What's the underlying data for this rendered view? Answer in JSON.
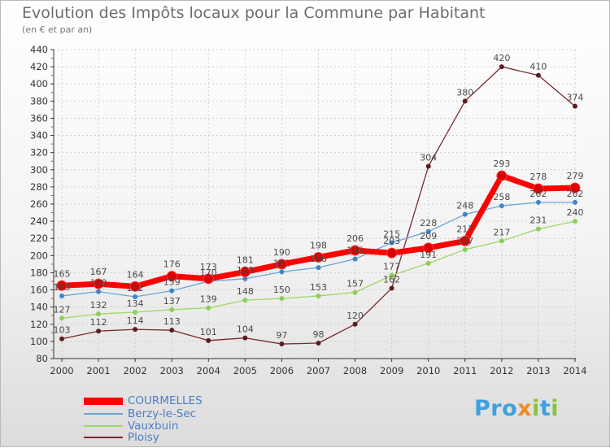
{
  "title": "Evolution des Impôts locaux pour la Commune par Habitant",
  "subtitle": "(en € et par an)",
  "logo_text": "Proxiti",
  "colors": {
    "grid": "#cfcfcf",
    "axis": "#333333",
    "tick_text": "#333333",
    "value_text": "#4a4a4a"
  },
  "chart_data": {
    "type": "line",
    "title": "Evolution des Impôts locaux pour la Commune par Habitant",
    "subtitle": "(en € et par an)",
    "xlabel": "",
    "ylabel": "",
    "ylim": [
      80,
      440
    ],
    "yticks": [
      80,
      100,
      120,
      140,
      160,
      180,
      200,
      220,
      240,
      260,
      280,
      300,
      320,
      340,
      360,
      380,
      400,
      420,
      440
    ],
    "categories": [
      "2000",
      "2001",
      "2002",
      "2003",
      "2004",
      "2005",
      "2006",
      "2007",
      "2008",
      "2009",
      "2010",
      "2011",
      "2012",
      "2013",
      "2014"
    ],
    "grid": true,
    "legend_position": "bottom-left",
    "series": [
      {
        "name": "Ploisy",
        "color": "#7a2a2a",
        "marker": "#5e1d1d",
        "values": [
          103,
          112,
          114,
          113,
          101,
          104,
          97,
          98,
          120,
          162,
          304,
          380,
          420,
          410,
          374
        ]
      },
      {
        "name": "Vauxbuin",
        "color": "#9ad868",
        "marker": "#8ccf56",
        "values": [
          127,
          132,
          134,
          137,
          139,
          148,
          150,
          153,
          157,
          177,
          191,
          207,
          217,
          231,
          240
        ]
      },
      {
        "name": "Berzy-le-Sec",
        "color": "#6ea3d6",
        "marker": "#3e86cc",
        "values": [
          153,
          158,
          152,
          159,
          170,
          173,
          181,
          186,
          196,
          215,
          228,
          248,
          258,
          262,
          262
        ]
      },
      {
        "name": "COURMELLES",
        "color": "#ff0000",
        "marker": "#dd0000",
        "values": [
          165,
          167,
          164,
          176,
          173,
          181,
          190,
          198,
          206,
          203,
          209,
          217,
          293,
          278,
          279
        ]
      }
    ]
  }
}
